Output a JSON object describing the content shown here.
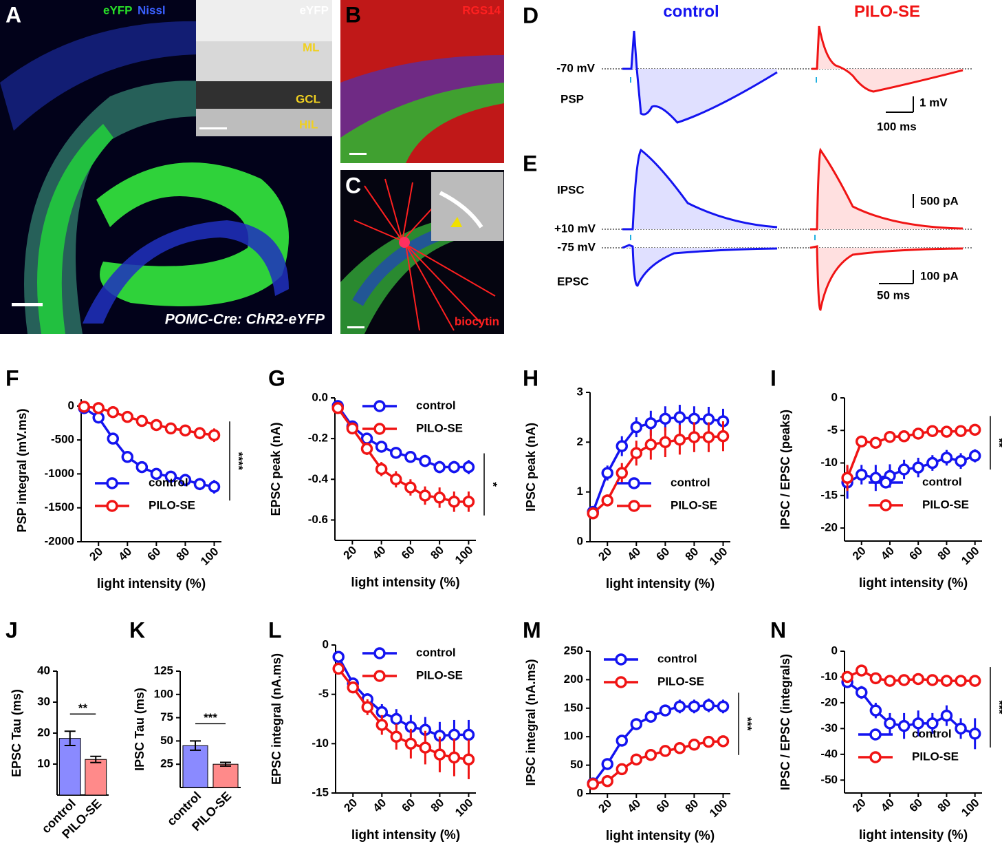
{
  "figure": {
    "A": {
      "letter": "A",
      "label_green": "eYFP",
      "label_blue": "Nissl",
      "inset_label": "eYFP",
      "layers": [
        "ML",
        "GCL",
        "HIL"
      ],
      "caption": "POMC-Cre: ChR2-eYFP"
    },
    "B": {
      "letter": "B",
      "label": "RGS14"
    },
    "C": {
      "letter": "C",
      "label": "biocytin"
    },
    "D": {
      "letter": "D",
      "conditions": [
        "control",
        "PILO-SE"
      ],
      "holding": "-70 mV",
      "trace": "PSP",
      "scale_y": "1 mV",
      "scale_x": "100 ms"
    },
    "E": {
      "letter": "E",
      "traces": [
        "IPSC",
        "EPSC"
      ],
      "holdings": [
        "+10 mV",
        "-75 mV"
      ],
      "scale_y": [
        "500 pA",
        "100 pA"
      ],
      "scale_x": "50 ms"
    }
  },
  "chart_data": [
    {
      "panel": "F",
      "type": "line",
      "ylabel": "PSP integral (mV.ms)",
      "xlabel": "light intensity (%)",
      "x": [
        10,
        20,
        30,
        40,
        50,
        60,
        70,
        80,
        90,
        100
      ],
      "xlim": [
        8,
        105
      ],
      "xticks": [
        20,
        40,
        60,
        80,
        100
      ],
      "ylim": [
        -2000,
        100
      ],
      "yticks": [
        0,
        -500,
        -1000,
        -1500,
        -2000
      ],
      "legend": "lower left",
      "significance": "****",
      "series": [
        {
          "name": "control",
          "color": "#1414f0",
          "values": [
            -30,
            -170,
            -480,
            -750,
            -900,
            -1000,
            -1040,
            -1090,
            -1150,
            -1190
          ],
          "errors": [
            30,
            40,
            60,
            70,
            70,
            80,
            80,
            90,
            90,
            100
          ]
        },
        {
          "name": "PILO-SE",
          "color": "#f01414",
          "values": [
            -10,
            -30,
            -90,
            -160,
            -220,
            -280,
            -330,
            -360,
            -400,
            -430
          ],
          "errors": [
            20,
            20,
            40,
            50,
            60,
            70,
            80,
            80,
            90,
            100
          ]
        }
      ]
    },
    {
      "panel": "G",
      "type": "line",
      "ylabel": "EPSC peak (nA)",
      "xlabel": "light intensity (%)",
      "x": [
        10,
        20,
        30,
        40,
        50,
        60,
        70,
        80,
        90,
        100
      ],
      "xlim": [
        8,
        105
      ],
      "xticks": [
        20,
        40,
        60,
        80,
        100
      ],
      "ylim": [
        -0.7,
        0
      ],
      "yticks": [
        {
          "value": 0,
          "label": "0.0"
        },
        -0.2,
        -0.4,
        -0.6
      ],
      "legend": "upper right",
      "significance": "*",
      "series": [
        {
          "name": "control",
          "color": "#1414f0",
          "values": [
            -0.04,
            -0.14,
            -0.2,
            -0.24,
            -0.27,
            -0.29,
            -0.31,
            -0.34,
            -0.34,
            -0.34
          ],
          "errors": [
            0.01,
            0.015,
            0.02,
            0.02,
            0.025,
            0.025,
            0.03,
            0.03,
            0.03,
            0.035
          ]
        },
        {
          "name": "PILO-SE",
          "color": "#f01414",
          "values": [
            -0.05,
            -0.15,
            -0.25,
            -0.35,
            -0.4,
            -0.44,
            -0.48,
            -0.49,
            -0.51,
            -0.51
          ],
          "errors": [
            0.01,
            0.02,
            0.03,
            0.035,
            0.04,
            0.04,
            0.045,
            0.05,
            0.05,
            0.05
          ]
        }
      ]
    },
    {
      "panel": "H",
      "type": "line",
      "ylabel": "IPSC peak (nA)",
      "xlabel": "light intensity (%)",
      "x": [
        10,
        20,
        30,
        40,
        50,
        60,
        70,
        80,
        90,
        100
      ],
      "xlim": [
        8,
        105
      ],
      "xticks": [
        20,
        40,
        60,
        80,
        100
      ],
      "ylim": [
        0,
        3
      ],
      "yticks": [
        0,
        1,
        2,
        3
      ],
      "legend": "lower right",
      "series": [
        {
          "name": "control",
          "color": "#1414f0",
          "values": [
            0.6,
            1.38,
            1.92,
            2.3,
            2.38,
            2.47,
            2.5,
            2.47,
            2.46,
            2.42
          ],
          "errors": [
            0.1,
            0.15,
            0.2,
            0.2,
            0.25,
            0.25,
            0.25,
            0.25,
            0.25,
            0.25
          ]
        },
        {
          "name": "PILO-SE",
          "color": "#f01414",
          "values": [
            0.57,
            0.83,
            1.38,
            1.78,
            1.95,
            2.0,
            2.05,
            2.1,
            2.1,
            2.12
          ],
          "errors": [
            0.1,
            0.12,
            0.2,
            0.25,
            0.3,
            0.3,
            0.3,
            0.3,
            0.3,
            0.3
          ]
        }
      ]
    },
    {
      "panel": "I",
      "type": "line",
      "ylabel": "IPSC / EPSC (peaks)",
      "xlabel": "light intensity (%)",
      "x": [
        10,
        20,
        30,
        40,
        50,
        60,
        70,
        80,
        90,
        100
      ],
      "xlim": [
        8,
        105
      ],
      "xticks": [
        20,
        40,
        60,
        80,
        100
      ],
      "ylim": [
        -22,
        0
      ],
      "yticks": [
        0,
        -5,
        -10,
        -15,
        -20
      ],
      "legend": "lower right",
      "significance": "**",
      "series": [
        {
          "name": "control",
          "color": "#1414f0",
          "values": [
            -13,
            -11.8,
            -12.3,
            -12,
            -11,
            -10.7,
            -10,
            -9.2,
            -9.7,
            -8.9
          ],
          "errors": [
            2.5,
            1.5,
            2,
            1.8,
            1.5,
            1.5,
            1.2,
            1.2,
            1.2,
            1.0
          ]
        },
        {
          "name": "PILO-SE",
          "color": "#f01414",
          "values": [
            -12.3,
            -6.7,
            -6.9,
            -6,
            -5.9,
            -5.5,
            -5.1,
            -5.2,
            -5.1,
            -4.9
          ],
          "errors": [
            2,
            0.8,
            0.8,
            0.6,
            0.6,
            0.5,
            0.5,
            0.5,
            0.5,
            0.5
          ]
        }
      ]
    },
    {
      "panel": "J",
      "type": "bar",
      "ylabel": "EPSC Tau (ms)",
      "categories": [
        "control",
        "PILO-SE"
      ],
      "values": [
        18.3,
        11.5
      ],
      "errors": [
        2.3,
        1.0
      ],
      "colors": [
        "#8a8aff",
        "#ff8a8a"
      ],
      "ylim": [
        0,
        40
      ],
      "yticks": [
        10,
        20,
        30,
        40
      ],
      "significance": "**"
    },
    {
      "panel": "K",
      "type": "bar",
      "ylabel": "IPSC Tau (ms)",
      "categories": [
        "control",
        "PILO-SE"
      ],
      "values": [
        45,
        25
      ],
      "errors": [
        5,
        2
      ],
      "colors": [
        "#8a8aff",
        "#ff8a8a"
      ],
      "ylim": [
        0,
        125
      ],
      "yticks": [
        25,
        50,
        75,
        100,
        125
      ],
      "significance": "***"
    },
    {
      "panel": "L",
      "type": "line",
      "ylabel": "EPSC integral (nA.ms)",
      "xlabel": "light intensity (%)",
      "x": [
        10,
        20,
        30,
        40,
        50,
        60,
        70,
        80,
        90,
        100
      ],
      "xlim": [
        8,
        105
      ],
      "xticks": [
        20,
        40,
        60,
        80,
        100
      ],
      "ylim": [
        -15,
        0
      ],
      "yticks": [
        0,
        -5,
        -10,
        -15
      ],
      "legend": "upper right",
      "series": [
        {
          "name": "control",
          "color": "#1414f0",
          "values": [
            -1.2,
            -3.9,
            -5.5,
            -6.8,
            -7.5,
            -8.3,
            -8.6,
            -9.2,
            -9.1,
            -9.1
          ],
          "errors": [
            0.3,
            0.4,
            0.6,
            0.8,
            1.0,
            1.2,
            1.3,
            1.4,
            1.5,
            1.5
          ]
        },
        {
          "name": "PILO-SE",
          "color": "#f01414",
          "values": [
            -2.4,
            -4.3,
            -6.3,
            -8.1,
            -9.3,
            -10,
            -10.4,
            -11.1,
            -11.4,
            -11.6
          ],
          "errors": [
            0.3,
            0.5,
            0.8,
            1,
            1.3,
            1.5,
            1.7,
            1.8,
            1.9,
            2
          ]
        }
      ]
    },
    {
      "panel": "M",
      "type": "line",
      "ylabel": "IPSC integral (nA.ms)",
      "xlabel": "light intensity (%)",
      "x": [
        10,
        20,
        30,
        40,
        50,
        60,
        70,
        80,
        90,
        100
      ],
      "xlim": [
        8,
        105
      ],
      "xticks": [
        20,
        40,
        60,
        80,
        100
      ],
      "ylim": [
        0,
        250
      ],
      "yticks": [
        0,
        50,
        100,
        150,
        200,
        250
      ],
      "legend": "upper left",
      "significance": "***",
      "series": [
        {
          "name": "control",
          "color": "#1414f0",
          "values": [
            18,
            52,
            93,
            122,
            135,
            146,
            153,
            153,
            155,
            153
          ],
          "errors": [
            3,
            6,
            8,
            8,
            10,
            10,
            12,
            12,
            12,
            12
          ]
        },
        {
          "name": "PILO-SE",
          "color": "#f01414",
          "values": [
            17,
            22,
            43,
            60,
            68,
            75,
            80,
            86,
            91,
            92
          ],
          "errors": [
            2,
            3,
            5,
            6,
            7,
            7,
            8,
            8,
            9,
            9
          ]
        }
      ]
    },
    {
      "panel": "N",
      "type": "line",
      "ylabel": "IPSC / EPSC (integrals)",
      "xlabel": "light intensity (%)",
      "x": [
        10,
        20,
        30,
        40,
        50,
        60,
        70,
        80,
        90,
        100
      ],
      "xlim": [
        8,
        105
      ],
      "xticks": [
        20,
        40,
        60,
        80,
        100
      ],
      "ylim": [
        -55,
        0
      ],
      "yticks": [
        0,
        -10,
        -20,
        -30,
        -40,
        -50
      ],
      "legend": "lower left",
      "significance": "***",
      "series": [
        {
          "name": "control",
          "color": "#1414f0",
          "values": [
            -12,
            -16,
            -23,
            -28,
            -29,
            -28,
            -28,
            -25,
            -30,
            -32
          ],
          "errors": [
            2,
            2.5,
            3,
            4,
            5,
            5,
            4,
            4,
            4,
            6
          ]
        },
        {
          "name": "PILO-SE",
          "color": "#f01414",
          "values": [
            -10,
            -7.5,
            -10.5,
            -11.5,
            -11.2,
            -10.8,
            -11.2,
            -11.5,
            -11.5,
            -11.5
          ],
          "errors": [
            2,
            1.5,
            1.5,
            1.5,
            1.5,
            1.5,
            1.5,
            1.5,
            1.5,
            1.5
          ]
        }
      ]
    }
  ]
}
